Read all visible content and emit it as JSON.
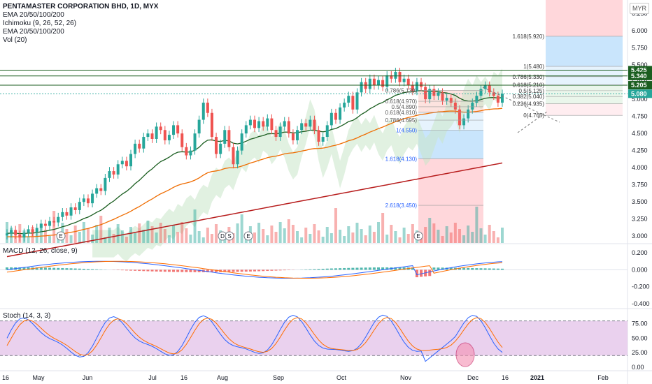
{
  "header": {
    "title": "PENTAMASTER CORPORATION BHD, 1D, MYX",
    "indicators": [
      "EMA 20/50/100/200",
      "Ichimoku (9, 26, 52, 26)",
      "EMA 20/50/100/200",
      "Vol (20)"
    ],
    "currency": "MYR"
  },
  "panes": {
    "macd_label": "MACD (12, 26, close, 9)",
    "stoch_label": "Stoch (14, 3, 3)"
  },
  "colors": {
    "up": "#26a69a",
    "down": "#ef5350",
    "ema20": "#1b5e20",
    "ema50": "#ef6c00",
    "ema200": "#b71c1c",
    "cloud": "#c8e6c9",
    "macd": "#2962ff",
    "signal": "#ff6d00",
    "stoch_k": "#2962ff",
    "stoch_d": "#ff6d00",
    "stoch_bg": "#e1bee7"
  },
  "price_badges": [
    {
      "value": "5.425",
      "bg": "#1b5e20"
    },
    {
      "value": "5.340",
      "bg": "#1b5e20"
    },
    {
      "value": "5.205",
      "bg": "#1b5e20"
    },
    {
      "value": "5.080",
      "bg": "#26a69a"
    }
  ],
  "chart_data": [
    {
      "type": "candlestick",
      "y_axis": {
        "ticks": [
          "6.250",
          "6.000",
          "5.750",
          "5.500",
          "5.250",
          "5.000",
          "4.750",
          "4.500",
          "4.250",
          "4.000",
          "3.750",
          "3.500",
          "3.250",
          "3.000"
        ],
        "range": [
          2.9,
          6.45
        ],
        "scale": "linear"
      },
      "x_axis": {
        "ticks": [
          "16",
          "May",
          "Jun",
          "Jul",
          "16",
          "Aug",
          "Sep",
          "Oct",
          "Nov",
          "Dec",
          "16",
          "2021",
          "Feb"
        ]
      },
      "close": [
        3.04,
        3.09,
        3.02,
        2.98,
        3.05,
        3.1,
        3.06,
        3.12,
        3.18,
        3.15,
        3.22,
        3.2,
        3.28,
        3.35,
        3.3,
        3.42,
        3.38,
        3.5,
        3.55,
        3.48,
        3.62,
        3.7,
        3.66,
        3.85,
        3.95,
        3.9,
        4.05,
        4.1,
        4.02,
        4.2,
        4.35,
        4.28,
        4.45,
        4.5,
        4.42,
        4.6,
        4.55,
        4.4,
        4.48,
        4.62,
        4.5,
        4.3,
        4.18,
        4.25,
        4.5,
        4.7,
        4.95,
        4.8,
        4.45,
        4.2,
        4.35,
        4.55,
        4.3,
        4.05,
        4.25,
        4.5,
        4.62,
        4.7,
        4.58,
        4.68,
        4.6,
        4.72,
        4.55,
        4.45,
        4.6,
        4.68,
        4.5,
        4.4,
        4.55,
        4.65,
        4.6,
        4.7,
        4.55,
        4.38,
        4.45,
        4.62,
        4.8,
        4.7,
        4.88,
        4.95,
        5.05,
        4.85,
        5.1,
        5.25,
        5.15,
        5.3,
        5.2,
        5.28,
        5.18,
        5.35,
        5.3,
        5.4,
        5.25,
        5.3,
        5.2,
        5.12,
        5.25,
        5.18,
        5.0,
        5.15,
        5.05,
        5.1,
        4.98,
        5.02,
        4.95,
        4.85,
        4.62,
        4.72,
        4.85,
        4.95,
        5.05,
        5.15,
        5.2,
        5.1,
        5.05,
        4.95,
        5.08
      ],
      "levels": [
        {
          "label": "5.425"
        },
        {
          "label": "5.340"
        },
        {
          "label": "5.205"
        }
      ],
      "fib_left": [
        {
          "label": "0.786(5.130)",
          "value": 5.13
        },
        {
          "label": "0.618(4.970)",
          "value": 4.97
        },
        {
          "label": "0.5(4.890)",
          "value": 4.89
        },
        {
          "label": "0.618(4.810)",
          "value": 4.81
        },
        {
          "label": "0.786(4.695)",
          "value": 4.695
        },
        {
          "label": "1(4.550)",
          "value": 4.55
        },
        {
          "label": "1.618(4.130)",
          "value": 4.13
        },
        {
          "label": "2.618(3.450)",
          "value": 3.45
        }
      ],
      "fib_right": [
        {
          "label": "1.618(5.920)",
          "value": 5.92
        },
        {
          "label": "1(5.480)",
          "value": 5.48
        },
        {
          "label": "0.786(5.330)",
          "value": 5.33
        },
        {
          "label": "0.618(5.210)",
          "value": 5.21
        },
        {
          "label": "0.5(5.125)",
          "value": 5.125
        },
        {
          "label": "0.382(5.040)",
          "value": 5.04
        },
        {
          "label": "0.236(4.935)",
          "value": 4.935
        },
        {
          "label": "0(4.765)",
          "value": 4.765
        }
      ]
    },
    {
      "type": "line",
      "name": "MACD",
      "y_axis": {
        "ticks": [
          "0.200",
          "0.000",
          "-0.200",
          "-0.400"
        ],
        "range": [
          -0.45,
          0.3
        ]
      }
    },
    {
      "type": "line",
      "name": "Stoch",
      "y_axis": {
        "ticks": [
          "75.00",
          "50.00",
          "25.00",
          "0.00"
        ],
        "range": [
          -5,
          100
        ]
      },
      "bands": [
        20,
        80
      ]
    }
  ]
}
